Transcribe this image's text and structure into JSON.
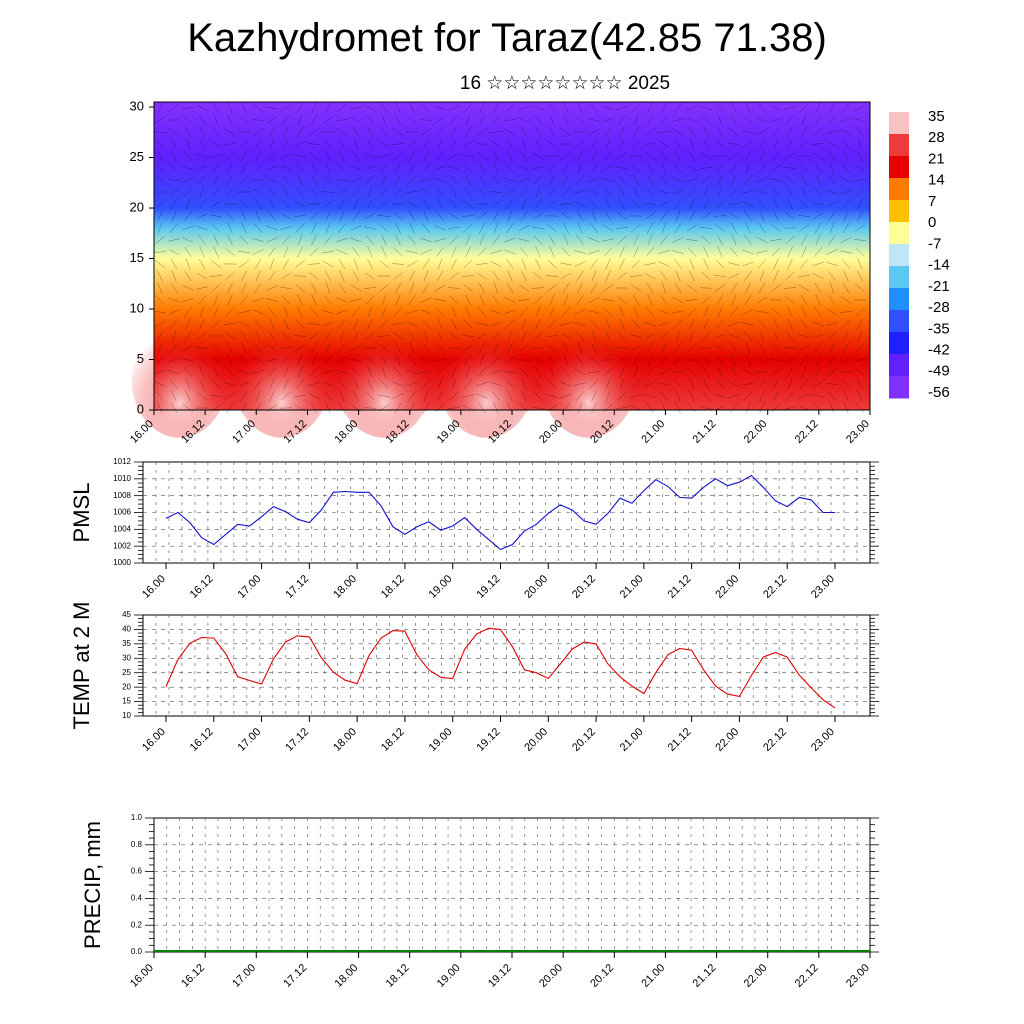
{
  "title": "Kazhydromet for Taraz(42.85 71.38)",
  "subtitle": "16 ☆☆☆☆☆☆☆☆ 2025",
  "chart_data": [
    {
      "type": "heatmap",
      "title": "",
      "x_tick_labels": [
        "16.00",
        "16.12",
        "17.00",
        "17.12",
        "18.00",
        "18.12",
        "19.00",
        "19.12",
        "20.00",
        "20.12",
        "21.00",
        "21.12",
        "22.00",
        "22.12",
        "23.00"
      ],
      "y_tick_labels": [
        "0",
        "5",
        "10",
        "15",
        "20",
        "25",
        "30"
      ],
      "ylim": [
        0,
        30.5
      ],
      "colorbar_labels": [
        "35",
        "28",
        "21",
        "14",
        "7",
        "0",
        "-7",
        "-14",
        "-21",
        "-28",
        "-35",
        "-42",
        "-49",
        "-56"
      ],
      "colorbar_colors": [
        "#f9c2c2",
        "#ee3a3a",
        "#e60000",
        "#ff7a00",
        "#ffc000",
        "#ffff99",
        "#bfe6f5",
        "#5ac8f0",
        "#1e90ff",
        "#3050ff",
        "#2020ff",
        "#6020ff",
        "#8030ff"
      ],
      "layers": [
        {
          "height": 0,
          "temperature": 24
        },
        {
          "height": 5,
          "temperature": 18
        },
        {
          "height": 10,
          "temperature": 11
        },
        {
          "height": 15,
          "temperature": -6
        },
        {
          "height": 18,
          "temperature": -20
        },
        {
          "height": 20,
          "temperature": -35
        },
        {
          "height": 25,
          "temperature": -52
        },
        {
          "height": 30,
          "temperature": -60
        }
      ],
      "grid": false
    },
    {
      "type": "line",
      "ylabel": "PMSL",
      "ylim": [
        1000,
        1012
      ],
      "y_ticks": [
        "1000",
        "1002",
        "1004",
        "1006",
        "1008",
        "1010",
        "1012"
      ],
      "x_tick_labels": [
        "16.00",
        "16.12",
        "17.00",
        "17.12",
        "18.00",
        "18.12",
        "19.00",
        "19.12",
        "20.00",
        "20.12",
        "21.00",
        "21.12",
        "22.00",
        "22.12",
        "23.00"
      ],
      "grid": true,
      "color": "#1010d0",
      "series": [
        {
          "values": [
            1005.3,
            1006.0,
            1004.8,
            1003.0,
            1002.2,
            1003.4,
            1004.6,
            1004.4,
            1005.5,
            1006.7,
            1006.1,
            1005.2,
            1004.8,
            1006.3,
            1008.4,
            1008.5,
            1008.4,
            1008.4,
            1006.8,
            1004.3,
            1003.4,
            1004.3,
            1004.9,
            1003.9,
            1004.4,
            1005.4,
            1004.0,
            1002.8,
            1001.6,
            1002.2,
            1003.8,
            1004.6,
            1005.9,
            1006.9,
            1006.3,
            1005.0,
            1004.6,
            1005.9,
            1007.7,
            1007.1,
            1008.6,
            1009.9,
            1009.1,
            1007.8,
            1007.7,
            1009.0,
            1010.0,
            1009.2,
            1009.6,
            1010.4,
            1009.0,
            1007.4,
            1006.7,
            1007.8,
            1007.5,
            1006.0,
            1006.0
          ]
        }
      ]
    },
    {
      "type": "line",
      "ylabel": "TEMP at 2 M",
      "ylim": [
        10,
        45
      ],
      "y_ticks": [
        "10",
        "15",
        "20",
        "25",
        "30",
        "35",
        "40",
        "45"
      ],
      "x_tick_labels": [
        "16.00",
        "16.12",
        "17.00",
        "17.12",
        "18.00",
        "18.12",
        "19.00",
        "19.12",
        "20.00",
        "20.12",
        "21.00",
        "21.12",
        "22.00",
        "22.12",
        "23.00"
      ],
      "grid": true,
      "color": "#e00000",
      "series": [
        {
          "values": [
            20.2,
            29.6,
            35.2,
            37.2,
            37.0,
            31.6,
            23.6,
            22.3,
            21.1,
            29.8,
            35.6,
            37.8,
            37.4,
            30.2,
            25.2,
            22.4,
            21.2,
            31.0,
            37.0,
            39.6,
            39.4,
            31.2,
            26.0,
            23.4,
            23.0,
            33.2,
            38.4,
            40.4,
            40.0,
            34.0,
            26.0,
            25.0,
            23.0,
            28.0,
            33.2,
            35.6,
            35.0,
            28.0,
            23.6,
            20.4,
            17.8,
            25.0,
            31.2,
            33.4,
            32.8,
            26.0,
            20.4,
            17.6,
            16.8,
            24.0,
            30.4,
            32.0,
            30.4,
            24.2,
            19.8,
            15.6,
            12.8
          ]
        }
      ]
    },
    {
      "type": "bar",
      "ylabel": "PRECIP, mm",
      "ylim": [
        0.0,
        1.0
      ],
      "y_ticks": [
        "0.0",
        "0.2",
        "0.4",
        "0.6",
        "0.8",
        "1.0"
      ],
      "x_tick_labels": [
        "16.00",
        "16.12",
        "17.00",
        "17.12",
        "18.00",
        "18.12",
        "19.00",
        "19.12",
        "20.00",
        "20.12",
        "21.00",
        "21.12",
        "22.00",
        "22.12",
        "23.00"
      ],
      "grid": true,
      "color": "#008000",
      "values": [
        0,
        0,
        0,
        0,
        0,
        0,
        0,
        0,
        0,
        0,
        0,
        0,
        0,
        0,
        0
      ]
    }
  ]
}
